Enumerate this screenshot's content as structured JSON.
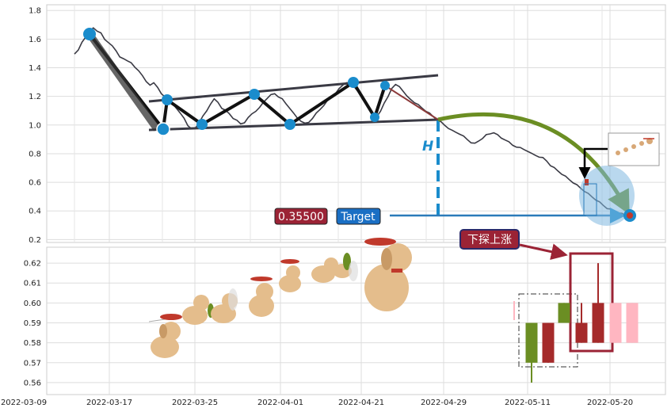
{
  "chart_data": [
    {
      "type": "line",
      "panel": "top",
      "ylim": [
        0.18,
        1.84
      ],
      "y_ticks": [
        "0.2",
        "0.4",
        "0.6",
        "0.8",
        "1.0",
        "1.2",
        "1.4",
        "1.6",
        "1.8"
      ],
      "grid": true,
      "series": [
        {
          "values": [
            1.5,
            1.52,
            1.58,
            1.62,
            1.65,
            1.68,
            1.66,
            1.64,
            1.6,
            1.58,
            1.55,
            1.52,
            1.48,
            1.46,
            1.45,
            1.44,
            1.4,
            1.38,
            1.35,
            1.3,
            1.28,
            1.3,
            1.26,
            1.22,
            1.2,
            1.18,
            1.15,
            1.12,
            1.08,
            1.05,
            1.0,
            0.97,
            0.98,
            1.02,
            1.06,
            1.1,
            1.15,
            1.18,
            1.16,
            1.12,
            1.1,
            1.08,
            1.05,
            1.03,
            1.01,
            1.02,
            1.05,
            1.08,
            1.1,
            1.12,
            1.16,
            1.19,
            1.21,
            1.22,
            1.2,
            1.18,
            1.15,
            1.12,
            1.08,
            1.05,
            1.03,
            1.01,
            1.02,
            1.05,
            1.08,
            1.11,
            1.14,
            1.17,
            1.2,
            1.22,
            1.25,
            1.28,
            1.3,
            1.29,
            1.27,
            1.24,
            1.2,
            1.16,
            1.12,
            1.08,
            1.06,
            1.1,
            1.15,
            1.2,
            1.26,
            1.28,
            1.27,
            1.24,
            1.2,
            1.18,
            1.16,
            1.14,
            1.12,
            1.1,
            1.08,
            1.06,
            1.04,
            1.02,
            1.0,
            0.98,
            0.96,
            0.95,
            0.94,
            0.92,
            0.9,
            0.88,
            0.87,
            0.89,
            0.91,
            0.93,
            0.94,
            0.95,
            0.93,
            0.91,
            0.9,
            0.88,
            0.86,
            0.85,
            0.84,
            0.83,
            0.82,
            0.8,
            0.79,
            0.78,
            0.77,
            0.75,
            0.72,
            0.7,
            0.68,
            0.66,
            0.64,
            0.62,
            0.6,
            0.58,
            0.56,
            0.54,
            0.52,
            0.5,
            0.48,
            0.46,
            0.44,
            0.42,
            0.41,
            0.4,
            0.39,
            0.38,
            0.36,
            0.355
          ],
          "x_start": "2022-03-14",
          "x_end": "2022-05-20"
        }
      ],
      "annotations": {
        "pattern_points": [
          [
            1.65
          ],
          [
            0.97
          ],
          [
            1.18
          ],
          [
            1.01
          ],
          [
            1.22
          ],
          [
            1.01
          ],
          [
            1.3
          ],
          [
            1.06
          ],
          [
            1.28
          ]
        ],
        "h_label": "H",
        "price_label": "0.35500",
        "target_label": "Target",
        "target_value": 0.355
      }
    },
    {
      "type": "bar",
      "panel": "bottom",
      "ylim": [
        0.554,
        0.628
      ],
      "y_ticks": [
        "0.56",
        "0.57",
        "0.58",
        "0.59",
        "0.60",
        "0.61",
        "0.62"
      ],
      "x_ticks": [
        "2022-03-09",
        "2022-03-17",
        "2022-03-25",
        "2022-04-01",
        "2022-04-21",
        "2022-04-29",
        "2022-05-11",
        "2022-05-20"
      ],
      "grid": true,
      "candles": [
        {
          "open": 0.57,
          "close": 0.59,
          "high": 0.59,
          "low": 0.56,
          "color": "#6b8e23"
        },
        {
          "open": 0.59,
          "close": 0.57,
          "high": 0.59,
          "low": 0.57,
          "color": "#a52a2a"
        },
        {
          "open": 0.59,
          "close": 0.6,
          "high": 0.6,
          "low": 0.59,
          "color": "#6b8e23"
        },
        {
          "open": 0.59,
          "close": 0.58,
          "high": 0.6,
          "low": 0.58,
          "color": "#a52a2a"
        },
        {
          "open": 0.6,
          "close": 0.58,
          "high": 0.62,
          "low": 0.58,
          "color": "#a52a2a"
        },
        {
          "open": 0.6,
          "close": 0.58,
          "high": 0.6,
          "low": 0.58,
          "color": "#ffb6c1"
        },
        {
          "open": 0.6,
          "close": 0.58,
          "high": 0.6,
          "low": 0.58,
          "color": "#ffb6c1"
        }
      ],
      "annotations": {
        "callout_label": "下探上涨"
      }
    }
  ],
  "colors": {
    "marker_blue": "#1a8ccc",
    "line_dark": "#3a3a44",
    "arrow_green": "#6b8e23",
    "label_red": "#9b2335",
    "label_blue": "#1a6fc4",
    "candle_green": "#6b8e23",
    "candle_red": "#a52a2a",
    "candle_pink": "#ffb6c1"
  }
}
